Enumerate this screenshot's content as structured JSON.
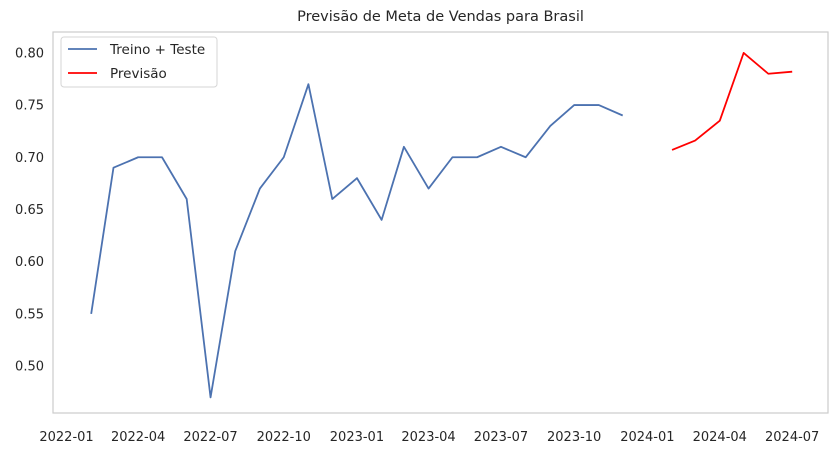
{
  "chart_data": {
    "type": "line",
    "title": "Previsão de Meta de Vendas para Brasil",
    "xlabel": "",
    "ylabel": "",
    "xlim": [
      "2021-12-15",
      "2024-08-15"
    ],
    "ylim": [
      0.455,
      0.82
    ],
    "x_ticks": [
      "2022-01",
      "2022-04",
      "2022-07",
      "2022-10",
      "2023-01",
      "2023-04",
      "2023-07",
      "2023-10",
      "2024-01",
      "2024-04",
      "2024-07"
    ],
    "y_ticks": [
      "0.50",
      "0.55",
      "0.60",
      "0.65",
      "0.70",
      "0.75",
      "0.80"
    ],
    "grid": false,
    "legend_position": "top-left",
    "series": [
      {
        "name": "Treino + Teste",
        "color": "#4c72b0",
        "x": [
          "2022-02-01",
          "2022-03-01",
          "2022-04-01",
          "2022-05-01",
          "2022-06-01",
          "2022-07-01",
          "2022-08-01",
          "2022-09-01",
          "2022-10-01",
          "2022-11-01",
          "2022-12-01",
          "2023-01-01",
          "2023-02-01",
          "2023-03-01",
          "2023-04-01",
          "2023-05-01",
          "2023-06-01",
          "2023-07-01",
          "2023-08-01",
          "2023-09-01",
          "2023-10-01",
          "2023-11-01",
          "2023-12-01"
        ],
        "values": [
          0.55,
          0.69,
          0.7,
          0.7,
          0.66,
          0.47,
          0.61,
          0.67,
          0.7,
          0.77,
          0.66,
          0.68,
          0.64,
          0.71,
          0.67,
          0.7,
          0.7,
          0.71,
          0.7,
          0.73,
          0.75,
          0.75,
          0.74
        ]
      },
      {
        "name": "Previsão",
        "color": "#ff0000",
        "x": [
          "2024-02-01",
          "2024-03-01",
          "2024-04-01",
          "2024-05-01",
          "2024-06-01",
          "2024-07-01"
        ],
        "values": [
          0.707,
          0.716,
          0.735,
          0.8,
          0.78,
          0.782
        ]
      }
    ]
  }
}
